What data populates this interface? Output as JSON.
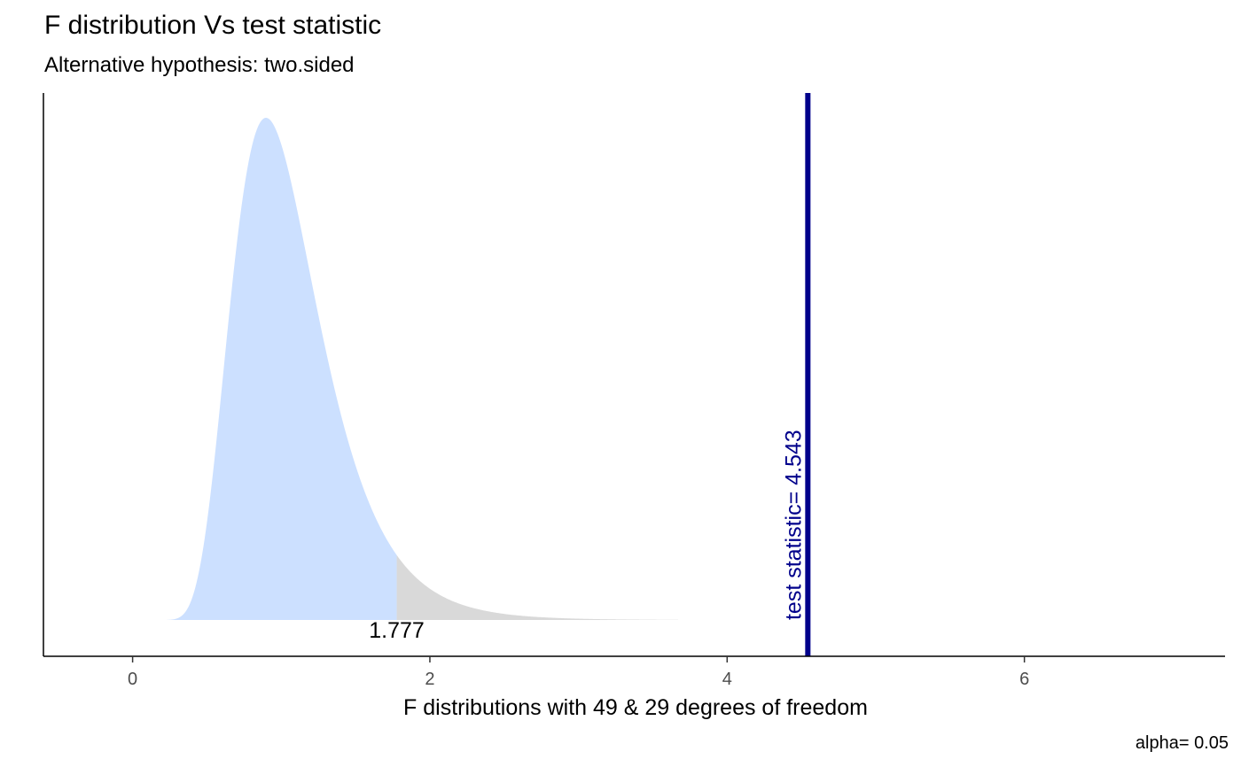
{
  "chart_data": {
    "type": "area",
    "title": "F distribution Vs test statistic",
    "subtitle": "Alternative hypothesis: two.sided",
    "xlabel": "F distributions with 49 & 29 degrees of freedom",
    "ylabel": "",
    "caption": "alpha= 0.05",
    "xlim": [
      -0.6,
      7.35
    ],
    "x_ticks": [
      0,
      2,
      4,
      6
    ],
    "df1": 49,
    "df2": 29,
    "curve_range": [
      0.23,
      3.67
    ],
    "critical_value": 1.777,
    "critical_label": "1.777",
    "test_statistic": 4.543,
    "test_statistic_label": "test statistic= 4.543",
    "acceptance_color": "#cce0ff",
    "rejection_color": "#d9d9d9",
    "statistic_line_color": "#00008b",
    "grid": false
  }
}
